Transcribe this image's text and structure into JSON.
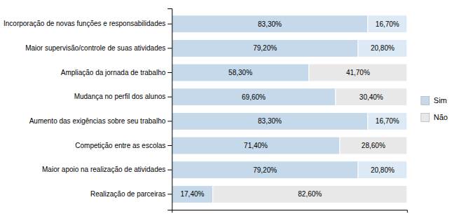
{
  "chart_data": {
    "type": "bar",
    "orientation": "horizontal",
    "stacked": true,
    "categories": [
      "Incorporação de novas funções e responsabilidades",
      "Maior supervisão/controle de suas atividades",
      "Ampliação da jornada de trabalho",
      "Mudança no perfil dos alunos",
      "Aumento das exigências sobre seu trabalho",
      "Competição entre as escolas",
      "Maior apoio na realização de atividades",
      "Realização de parceiras"
    ],
    "series": [
      {
        "name": "Sim",
        "color": "#c5d9ea",
        "values": [
          83.3,
          79.2,
          58.3,
          69.6,
          83.3,
          71.4,
          79.2,
          17.4
        ],
        "value_labels": [
          "83,30%",
          "79,20%",
          "58,30%",
          "69,60%",
          "83,30%",
          "71,40%",
          "79,20%",
          "17,40%"
        ]
      },
      {
        "name": "Não",
        "color": "#e8e8e8",
        "colors": [
          "#ddeaf5",
          "#ddeaf5",
          "#e8e8e8",
          "#e8e8e8",
          "#ddeaf5",
          "#e8e8e8",
          "#ddeaf5",
          "#e8e8e8"
        ],
        "values": [
          16.7,
          20.8,
          41.7,
          30.4,
          16.7,
          28.6,
          20.8,
          82.6
        ],
        "value_labels": [
          "16,70%",
          "20,80%",
          "41,70%",
          "30,40%",
          "16,70%",
          "28,60%",
          "20,80%",
          "82,60%"
        ]
      }
    ],
    "xlim": [
      0,
      100
    ],
    "data_labels": true,
    "tick_labels": "y",
    "legend": "right"
  }
}
